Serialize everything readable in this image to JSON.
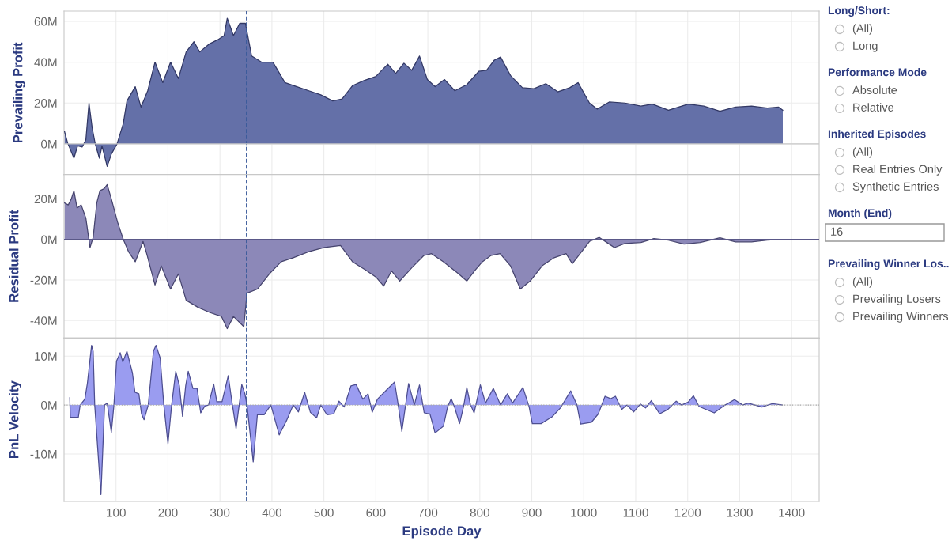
{
  "chart_data": [
    {
      "type": "area",
      "ylabel": "Prevailing Profit",
      "xlim": [
        0,
        1453
      ],
      "ylim": [
        -15,
        65
      ],
      "xticks": [
        100,
        200,
        300,
        400,
        500,
        600,
        700,
        800,
        900,
        1000,
        1100,
        1200,
        1300,
        1400
      ],
      "yticks": [
        {
          "value": 0,
          "label": "0M"
        },
        {
          "value": 20,
          "label": "20M"
        },
        {
          "value": 40,
          "label": "40M"
        },
        {
          "value": 60,
          "label": "60M"
        }
      ],
      "grid": true,
      "tick_labels": "y",
      "ref_lines": [
        {
          "axis": "x",
          "value": 351,
          "color": "#3a5a9a",
          "line_style": "dashed"
        },
        {
          "axis": "y",
          "value": 0,
          "color": "#c8c8c8",
          "line_style": "solid"
        }
      ],
      "series": [
        {
          "color": "#6470a8",
          "x": [
            1,
            7,
            19,
            26,
            35,
            42,
            48,
            54,
            60,
            68,
            73,
            83,
            91,
            102,
            114,
            121,
            137,
            148,
            161,
            175,
            190,
            205,
            220,
            235,
            250,
            261,
            280,
            296,
            308,
            314,
            326,
            338,
            349,
            361,
            380,
            402,
            425,
            448,
            471,
            494,
            517,
            535,
            555,
            577,
            600,
            623,
            638,
            654,
            669,
            684,
            699,
            714,
            732,
            752,
            775,
            798,
            813,
            828,
            840,
            859,
            882,
            904,
            927,
            950,
            973,
            989,
            1011,
            1026,
            1049,
            1079,
            1110,
            1132,
            1163,
            1201,
            1231,
            1262,
            1292,
            1323,
            1353,
            1375,
            1383
          ],
          "values": [
            6,
            0.4,
            -7,
            -1,
            -1.5,
            2,
            20,
            8,
            0,
            -7,
            -1,
            -11,
            -5,
            0,
            10,
            21,
            28,
            18,
            26,
            40,
            30,
            40,
            32,
            45,
            50,
            45,
            49,
            51,
            53,
            61.5,
            53,
            59,
            59,
            43,
            40,
            40,
            30,
            28,
            26,
            24,
            21,
            22,
            28.5,
            31,
            33,
            39,
            34.5,
            39.5,
            36,
            43,
            31.5,
            28,
            31.5,
            26,
            29,
            35.5,
            36,
            41,
            42.5,
            33.5,
            27.5,
            27,
            29.5,
            25.5,
            27.5,
            30,
            20,
            17,
            20.5,
            20,
            18.5,
            19.5,
            16.5,
            19.5,
            18.5,
            16,
            18,
            18.5,
            17.5,
            18,
            16.5
          ]
        }
      ]
    },
    {
      "type": "area",
      "ylabel": "Residual Profit",
      "xlim": [
        0,
        1453
      ],
      "ylim": [
        -48.6,
        32
      ],
      "xticks": [
        100,
        200,
        300,
        400,
        500,
        600,
        700,
        800,
        900,
        1000,
        1100,
        1200,
        1300,
        1400
      ],
      "yticks": [
        {
          "value": -40,
          "label": "-40M"
        },
        {
          "value": -20,
          "label": "-20M"
        },
        {
          "value": 0,
          "label": "0M"
        },
        {
          "value": 20,
          "label": "20M"
        }
      ],
      "grid": true,
      "tick_labels": "y",
      "ref_lines": [
        {
          "axis": "x",
          "value": 351,
          "color": "#3a5a9a",
          "line_style": "dashed"
        },
        {
          "axis": "y",
          "value": 0,
          "color": "#5a5888",
          "line_style": "solid"
        }
      ],
      "series": [
        {
          "color": "#8c88b8",
          "x": [
            1,
            8,
            14,
            19,
            25,
            33,
            42,
            50,
            56,
            63,
            69,
            77,
            83,
            91,
            103,
            114,
            124,
            137,
            152,
            159,
            175,
            187,
            205,
            220,
            235,
            258,
            280,
            303,
            314,
            326,
            346,
            352,
            372,
            395,
            418,
            441,
            471,
            501,
            532,
            555,
            580,
            600,
            615,
            630,
            646,
            669,
            692,
            707,
            730,
            757,
            775,
            790,
            805,
            821,
            839,
            859,
            878,
            897,
            920,
            943,
            966,
            978,
            996,
            1011,
            1030,
            1049,
            1059,
            1079,
            1110,
            1135,
            1163,
            1193,
            1224,
            1262,
            1292,
            1323,
            1353,
            1380
          ],
          "values": [
            18,
            17,
            20,
            24,
            15.5,
            17,
            10.5,
            -4,
            1,
            18,
            24,
            25,
            27,
            20,
            8.5,
            0,
            -6,
            -11,
            -1,
            -7,
            -22.5,
            -13,
            -24.5,
            -17,
            -30,
            -33.5,
            -36,
            -38,
            -44,
            -38,
            -43,
            -26.5,
            -24.5,
            -17,
            -11,
            -9,
            -6,
            -4,
            -3,
            -11,
            -15,
            -18.5,
            -23,
            -15.5,
            -20.5,
            -14,
            -8,
            -7,
            -11,
            -16.5,
            -20.5,
            -15.5,
            -11,
            -8,
            -7,
            -13,
            -24.5,
            -20.5,
            -13,
            -9,
            -7,
            -12,
            -6,
            -1,
            1,
            -2.3,
            -4,
            -2,
            -1.5,
            0.4,
            -0.4,
            -2.3,
            -1.5,
            0.8,
            -1.2,
            -1.2,
            -0.4,
            0
          ]
        }
      ]
    },
    {
      "type": "area",
      "ylabel": "PnL Velocity",
      "xlabel": "Episode Day",
      "xlim": [
        0,
        1453
      ],
      "ylim": [
        -19.7,
        13.7
      ],
      "xticks": [
        100,
        200,
        300,
        400,
        500,
        600,
        700,
        800,
        900,
        1000,
        1100,
        1200,
        1300,
        1400
      ],
      "yticks": [
        {
          "value": -10,
          "label": "-10M"
        },
        {
          "value": 0,
          "label": "0M"
        },
        {
          "value": 10,
          "label": "10M"
        }
      ],
      "grid": true,
      "ref_lines": [
        {
          "axis": "x",
          "value": 351,
          "color": "#3a5a9a",
          "line_style": "dashed"
        },
        {
          "axis": "y",
          "value": 0,
          "color": "#aaaaaa",
          "line_style": "dotted"
        }
      ],
      "series": [
        {
          "color": "#9a9cf0",
          "x": [
            11,
            12,
            27.5,
            31,
            40,
            45,
            53,
            56,
            59,
            71,
            78,
            83,
            91,
            96,
            101,
            108,
            113,
            121,
            131.5,
            136.5,
            144,
            149,
            154,
            162,
            172,
            177,
            185,
            192,
            200,
            207,
            215,
            222,
            228,
            234,
            239,
            248,
            256,
            263,
            271,
            278,
            288,
            294,
            304,
            316,
            323,
            331,
            337,
            342,
            348,
            352,
            364,
            372,
            385,
            398,
            414,
            428,
            441,
            451,
            463,
            474,
            486,
            494,
            506,
            519,
            529,
            539,
            552,
            562,
            575,
            585,
            593,
            603,
            618,
            636,
            643,
            650,
            663,
            674,
            684,
            693,
            704,
            714,
            730,
            738,
            745,
            752,
            761,
            769,
            775,
            782,
            789,
            801,
            811,
            826,
            840,
            853,
            863,
            883,
            895,
            901,
            918,
            939,
            955,
            975,
            987,
            994,
            1015,
            1028,
            1041,
            1052,
            1061,
            1073,
            1083,
            1096,
            1109,
            1119,
            1130,
            1146,
            1162,
            1178,
            1188,
            1201,
            1211,
            1222,
            1251,
            1272,
            1290,
            1306,
            1316,
            1343,
            1363,
            1382
          ],
          "values": [
            1.5,
            -2.5,
            -2.5,
            0,
            1.2,
            4.5,
            12.2,
            11,
            0,
            -18.3,
            0,
            0.4,
            -5.6,
            0,
            9,
            10.7,
            8.8,
            11,
            6.6,
            2.6,
            2.3,
            -1.8,
            -3,
            0,
            11,
            12.2,
            9.6,
            0,
            -7.9,
            0,
            6.9,
            3.9,
            -2.3,
            3.9,
            6.9,
            3.4,
            3.4,
            -1.6,
            -0.2,
            0,
            4.3,
            0.7,
            0.7,
            6,
            0.7,
            -4.8,
            0,
            4.2,
            2.3,
            0,
            -11.6,
            -2,
            -2,
            0,
            -6.1,
            -3.2,
            0,
            -1.4,
            2.6,
            -1.5,
            -2.6,
            0,
            -2,
            -1.8,
            0.8,
            -0.4,
            3.9,
            4.2,
            1.2,
            2.3,
            -1.5,
            1.2,
            2.8,
            4.7,
            0,
            -5.4,
            4.4,
            0,
            4.1,
            -1.6,
            -1.8,
            -5.7,
            -4.3,
            -0.4,
            1.3,
            -0.6,
            -3.8,
            -0.2,
            3.6,
            0.1,
            -1.6,
            4.1,
            0.4,
            3.4,
            0,
            2.3,
            0.4,
            3.6,
            -0.4,
            -3.8,
            -3.8,
            -2.4,
            -0.6,
            2.9,
            0,
            -3.9,
            -3.5,
            -1.8,
            1.8,
            1.3,
            1.8,
            -0.9,
            0,
            -1.4,
            0.2,
            -0.6,
            0.9,
            -1.8,
            -0.9,
            0.8,
            0,
            0.6,
            1.9,
            -0.3,
            -1.6,
            0,
            1.1,
            0,
            0.4,
            -0.4,
            0.3,
            0
          ]
        }
      ]
    },
    {
      "type": "other",
      "title": "Long/Short:",
      "annotations": [
        "(All)",
        "Long"
      ]
    },
    {
      "type": "other",
      "title": "Performance Mode",
      "annotations": [
        "Absolute",
        "Relative"
      ]
    },
    {
      "type": "other",
      "title": "Inherited Episodes",
      "annotations": [
        "(All)",
        "Real Entries Only",
        "Synthetic Entries"
      ]
    },
    {
      "type": "other",
      "title": "Month (End)",
      "annotations": [
        "16"
      ]
    },
    {
      "type": "other",
      "title": "Prevailing Winner Los..",
      "annotations": [
        "(All)",
        "Prevailing Losers",
        "Prevailing Winners"
      ]
    }
  ]
}
